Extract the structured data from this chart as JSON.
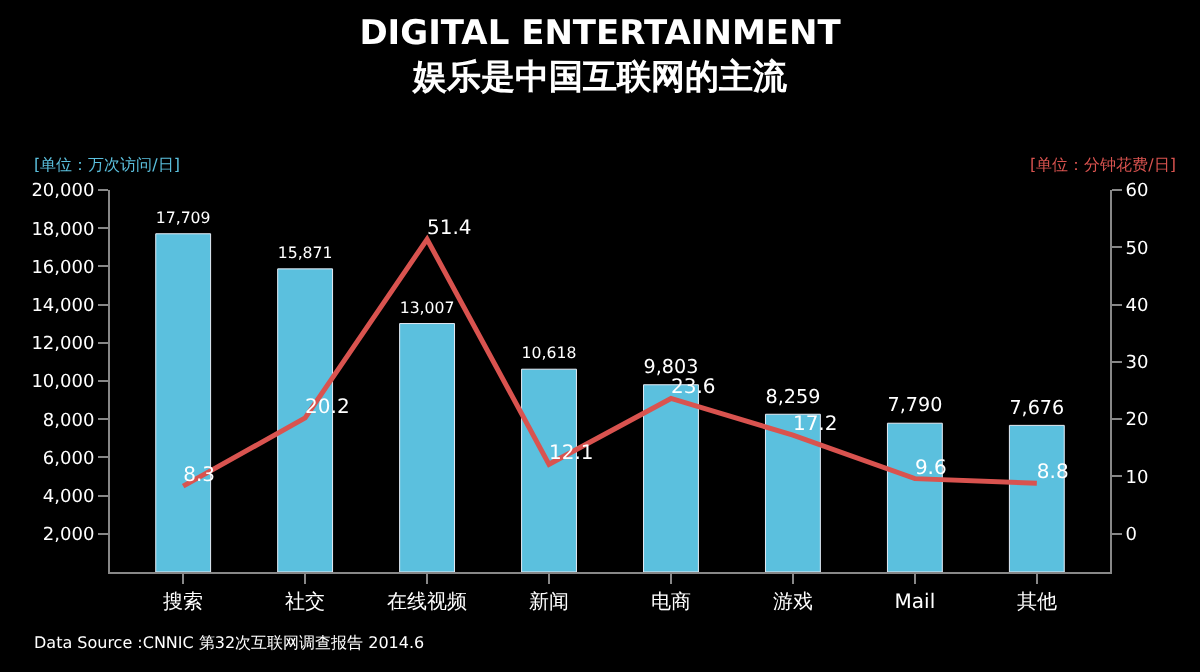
{
  "chart_data": {
    "type": "bar",
    "title": "DIGITAL ENTERTAINMENT",
    "subtitle": "娱乐是中国互联网的主流",
    "ylabel": "[单位：万次访问/日]",
    "y2label": "[单位：分钟花费/日]",
    "categories": [
      "搜索",
      "社交",
      "在线视频",
      "新闻",
      "电商",
      "游戏",
      "Mail",
      "其他"
    ],
    "series": [
      {
        "color": "#5bc0de",
        "values": [
          17709,
          15871,
          13007,
          10618,
          9803,
          8259,
          7790,
          7676
        ],
        "value_labels": [
          "17,709",
          "15,871",
          "13,007",
          "10,618",
          "9,803",
          "8,259",
          "7,790",
          "7,676"
        ]
      },
      {
        "type": "line",
        "axis": "y2",
        "color": "#d9534f",
        "values": [
          8.3,
          20.2,
          51.4,
          12.1,
          23.6,
          17.2,
          9.6,
          8.8
        ],
        "value_labels": [
          "8.3",
          "20.2",
          "51.4",
          "12.1",
          "23.6",
          "17.2",
          "9.6",
          "8.8"
        ]
      }
    ],
    "ylim": [
      0,
      20000
    ],
    "yticks": [
      {
        "value": 2000,
        "label": "2,000"
      },
      {
        "value": 4000,
        "label": "4,000"
      },
      {
        "value": 6000,
        "label": "6,000"
      },
      {
        "value": 8000,
        "label": "8,000"
      },
      {
        "value": 10000,
        "label": "10,000"
      },
      {
        "value": 12000,
        "label": "12,000"
      },
      {
        "value": 14000,
        "label": "14,000"
      },
      {
        "value": 16000,
        "label": "16,000"
      },
      {
        "value": 18000,
        "label": "18,000"
      },
      {
        "value": 20000,
        "label": "20,000"
      }
    ],
    "y2lim": [
      -6.7,
      60
    ],
    "y2ticks": [
      0,
      10,
      20,
      30,
      40,
      50,
      60
    ],
    "annotations": [
      "Data Source :CNNIC 第32次互联网调查报告 2014.6"
    ],
    "marker": "none",
    "line_style": "solid",
    "grid": false,
    "legend": false
  }
}
